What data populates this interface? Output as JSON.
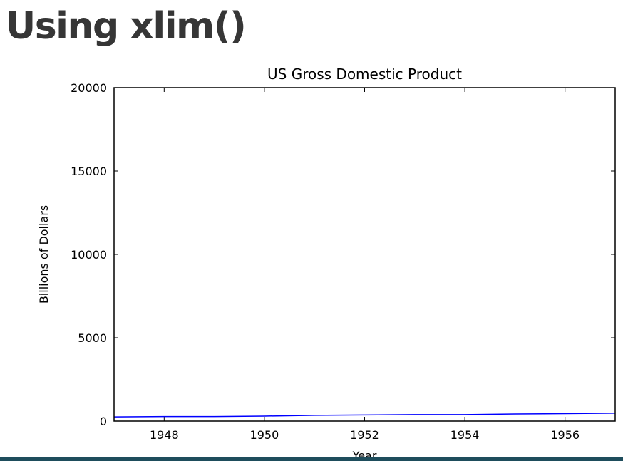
{
  "slide": {
    "title": "Using xlim()"
  },
  "colors": {
    "line": "#0000ff",
    "footer": "#1e4d5c",
    "title": "#363636"
  },
  "chart_data": {
    "type": "line",
    "title": "US Gross Domestic Product",
    "xlabel": "Year",
    "ylabel": "Billions of Dollars",
    "xlim": [
      1947,
      1957
    ],
    "ylim": [
      0,
      20000
    ],
    "xticks": [
      1948,
      1950,
      1952,
      1954,
      1956
    ],
    "yticks": [
      0,
      5000,
      10000,
      15000,
      20000
    ],
    "grid": false,
    "legend": "none",
    "series": [
      {
        "x": [
          1947,
          1948,
          1949,
          1950,
          1951,
          1952,
          1953,
          1954,
          1955,
          1956,
          1957
        ],
        "values": [
          249,
          274,
          273,
          300,
          347,
          367,
          389,
          391,
          425,
          449,
          474
        ]
      }
    ]
  }
}
